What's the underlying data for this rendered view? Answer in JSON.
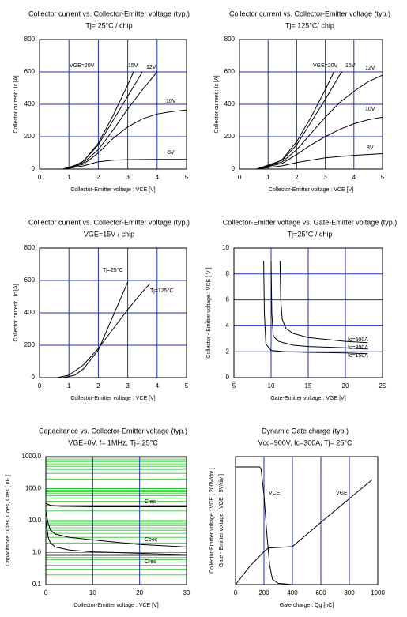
{
  "chart_data": [
    {
      "type": "line",
      "title": "Collector current vs. Collector-Emitter voltage  (typ.)",
      "subtitle": "Tj= 25°C / chip",
      "x_label": "Collector-Emitter voltage : VCE [V]",
      "y_label": "Collector current : Ic [A]",
      "xlim": [
        0,
        5
      ],
      "ylim": [
        0,
        800
      ],
      "xticks": [
        0,
        1,
        2,
        3,
        4,
        5
      ],
      "yticks": [
        0,
        200,
        400,
        600,
        800
      ],
      "grid": true,
      "grid_color": "#2233bb",
      "series": [
        {
          "name": "VGE=20V",
          "color": "#000000",
          "x": [
            0.8,
            1,
            1.5,
            2,
            2.5,
            3,
            3.2
          ],
          "values": [
            0,
            2,
            50,
            160,
            330,
            520,
            600
          ]
        },
        {
          "name": "15V",
          "color": "#000000",
          "x": [
            0.8,
            1.2,
            1.5,
            2,
            2.5,
            3,
            3.5
          ],
          "values": [
            0,
            10,
            50,
            150,
            300,
            450,
            600
          ]
        },
        {
          "name": "12V",
          "color": "#000000",
          "x": [
            0.8,
            1.5,
            2,
            2.5,
            3,
            3.5,
            4
          ],
          "values": [
            0,
            40,
            120,
            240,
            370,
            490,
            600
          ]
        },
        {
          "name": "10V",
          "color": "#000000",
          "x": [
            0.8,
            1.5,
            2,
            2.5,
            3,
            3.5,
            4,
            4.5,
            5
          ],
          "values": [
            0,
            30,
            100,
            190,
            260,
            310,
            340,
            355,
            365
          ]
        },
        {
          "name": "8V",
          "color": "#000000",
          "x": [
            0.8,
            1.5,
            2,
            2.5,
            3,
            4,
            5
          ],
          "values": [
            0,
            20,
            45,
            55,
            58,
            60,
            60
          ]
        }
      ]
    },
    {
      "type": "line",
      "title": "Collector current vs. Collector-Emitter voltage  (typ.)",
      "subtitle": "Tj= 125°C/ chip",
      "x_label": "Collector-Emitter voltage : VCE [V]",
      "y_label": "Collector current : Ic [A]",
      "xlim": [
        0,
        5
      ],
      "ylim": [
        0,
        800
      ],
      "xticks": [
        0,
        1,
        2,
        3,
        4,
        5
      ],
      "yticks": [
        0,
        200,
        400,
        600,
        800
      ],
      "grid": true,
      "grid_color": "#2233bb",
      "series": [
        {
          "name": "VGE=20V",
          "color": "#000000",
          "x": [
            0.6,
            1,
            1.5,
            2,
            2.5,
            3,
            3.3
          ],
          "values": [
            0,
            10,
            60,
            170,
            320,
            490,
            600
          ]
        },
        {
          "name": "15V",
          "color": "#000000",
          "x": [
            0.6,
            1.5,
            2,
            2.5,
            3,
            3.5,
            3.6
          ],
          "values": [
            0,
            55,
            150,
            290,
            430,
            580,
            600
          ]
        },
        {
          "name": "12V",
          "color": "#000000",
          "x": [
            0.6,
            1.5,
            2,
            2.5,
            3,
            3.5,
            4,
            4.5,
            5
          ],
          "values": [
            0,
            45,
            120,
            220,
            320,
            410,
            480,
            540,
            580
          ]
        },
        {
          "name": "10V",
          "color": "#000000",
          "x": [
            0.6,
            1.5,
            2,
            2.5,
            3,
            3.5,
            4,
            4.5,
            5
          ],
          "values": [
            0,
            35,
            90,
            150,
            200,
            245,
            280,
            305,
            320
          ]
        },
        {
          "name": "8V",
          "color": "#000000",
          "x": [
            0.6,
            1.5,
            2,
            2.5,
            3,
            4,
            5
          ],
          "values": [
            0,
            20,
            40,
            55,
            70,
            85,
            95
          ]
        }
      ]
    },
    {
      "type": "line",
      "title": "Collector current vs. Collector-Emitter voltage  (typ.)",
      "subtitle": "VGE=15V / chip",
      "x_label": "Collector-Emitter voltage : VCE [V]",
      "y_label": "Collector current : Ic [A]",
      "xlim": [
        0,
        5
      ],
      "ylim": [
        0,
        800
      ],
      "xticks": [
        0,
        1,
        2,
        3,
        4,
        5
      ],
      "yticks": [
        0,
        200,
        400,
        600,
        800
      ],
      "grid": true,
      "grid_color": "#2233bb",
      "series": [
        {
          "name": "Tj=25°C",
          "color": "#000000",
          "x": [
            0.8,
            1.2,
            1.5,
            2,
            2.5,
            3
          ],
          "values": [
            0,
            15,
            55,
            170,
            380,
            590
          ]
        },
        {
          "name": "Tj=125°C",
          "color": "#000000",
          "x": [
            0.6,
            1,
            1.5,
            2,
            2.5,
            3,
            3.5,
            3.75
          ],
          "values": [
            0,
            15,
            80,
            180,
            300,
            420,
            530,
            580
          ]
        }
      ]
    },
    {
      "type": "line",
      "title": "Collector-Emitter voltage  vs. Gate-Emitter voltage  (typ.)",
      "subtitle": "Tj=25°C / chip",
      "x_label": "Gate-Emitter voltage : VGE [V]",
      "y_label": "Collector - Emitter voltage : VCE [ V ]",
      "xlim": [
        5,
        25
      ],
      "ylim": [
        0,
        10
      ],
      "xticks": [
        5,
        10,
        15,
        20,
        25
      ],
      "yticks": [
        0,
        2,
        4,
        6,
        8,
        10
      ],
      "grid": true,
      "grid_color": "#2233bb",
      "series": [
        {
          "name": "Ic=600A",
          "color": "#000000",
          "x": [
            11.2,
            11.3,
            11.5,
            12,
            13,
            15,
            20,
            23
          ],
          "values": [
            9,
            6,
            4.5,
            3.8,
            3.4,
            3.1,
            2.8,
            2.7
          ]
        },
        {
          "name": "Ic=300A",
          "color": "#000000",
          "x": [
            10,
            10.1,
            10.3,
            11,
            13,
            15,
            20,
            23
          ],
          "values": [
            9,
            5,
            3.2,
            2.8,
            2.5,
            2.4,
            2.3,
            2.2
          ]
        },
        {
          "name": "Ic=150A",
          "color": "#000000",
          "x": [
            9,
            9.1,
            9.3,
            10,
            12,
            15,
            20,
            23
          ],
          "values": [
            9,
            5,
            2.6,
            2.1,
            2,
            1.95,
            1.9,
            1.85
          ]
        }
      ]
    },
    {
      "type": "line",
      "title": "Capacitance  vs.  Collector-Emitter voltage  (typ.)",
      "subtitle": "VGE=0V,  f= 1MHz,  Tj= 25°C",
      "x_label": "Collector-Emitter voltage : VCE [V]",
      "y_label": "Capacitance  :  Cies, Coes, Cres  [ nF ]",
      "xlim": [
        0,
        30
      ],
      "ylim": [
        0.1,
        1000
      ],
      "log_y": true,
      "xticks": [
        0,
        10,
        20,
        30
      ],
      "yticks": [
        0.1,
        {
          "value": 1,
          "label": "1.0"
        },
        {
          "value": 10,
          "label": "10.0"
        },
        {
          "value": 100,
          "label": "100.0"
        },
        {
          "value": 1000,
          "label": "1000.0"
        }
      ],
      "grid": true,
      "grid_color": "#2233bb",
      "minor_grid_color": "#22cc22",
      "series": [
        {
          "name": "Cies",
          "color": "#000000",
          "x": [
            0,
            1,
            3,
            10,
            30
          ],
          "values": [
            35,
            30,
            28,
            27,
            27
          ]
        },
        {
          "name": "Coes",
          "color": "#000000",
          "x": [
            0,
            0.5,
            1,
            2,
            5,
            10,
            20,
            30
          ],
          "values": [
            20,
            8,
            5,
            3.8,
            3,
            2.5,
            1.8,
            1.5
          ]
        },
        {
          "name": "Cres",
          "color": "#000000",
          "x": [
            0,
            0.5,
            1,
            2,
            5,
            10,
            20,
            30
          ],
          "values": [
            10,
            3,
            2,
            1.5,
            1.2,
            1.05,
            0.95,
            0.85
          ]
        }
      ]
    },
    {
      "type": "line",
      "title": "Dynamic Gate charge  (typ.)",
      "subtitle": "Vcc=900V,  Ic=300A,  Tj= 25°C",
      "x_label": "Gate charge : Qg [nC]",
      "y_label": "Collector-Emitter voltage : VCE [ 200V/div ]",
      "y2_label": "Gate - Emitter voltage : VGE  [ 5V/div ]",
      "xlim": [
        0,
        1000
      ],
      "ylim": [
        0,
        1000
      ],
      "y2lim": [
        -15,
        20
      ],
      "xticks": [
        0,
        200,
        400,
        600,
        800,
        1000
      ],
      "grid": true,
      "grid_color": "#2233bb",
      "series": [
        {
          "name": "VCE",
          "color": "#000000",
          "x": [
            0,
            170,
            180,
            200,
            220,
            240,
            260,
            300,
            400,
            1000
          ],
          "values": [
            920,
            920,
            900,
            700,
            400,
            150,
            40,
            10,
            0,
            0
          ]
        },
        {
          "name": "VGE",
          "color": "#000000",
          "axis": "y2",
          "x": [
            0,
            100,
            200,
            230,
            400,
            600,
            800,
            960
          ],
          "values": [
            -15,
            -10,
            -6,
            -5,
            -4.6,
            2,
            8.5,
            13.7
          ]
        }
      ]
    }
  ]
}
